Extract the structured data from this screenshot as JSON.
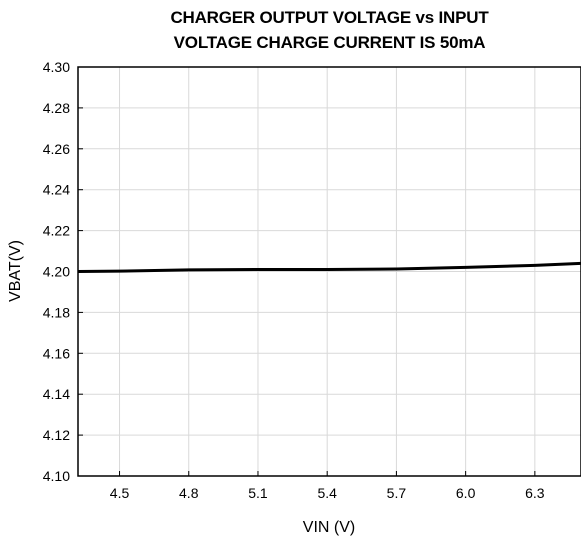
{
  "chart_data": {
    "type": "line",
    "title_lines": [
      "CHARGER OUTPUT VOLTAGE vs INPUT",
      "VOLTAGE CHARGE CURRENT IS 50mA"
    ],
    "xlabel": "VIN (V)",
    "ylabel": "VBAT(V)",
    "xlim": [
      4.32,
      6.5
    ],
    "ylim": [
      4.1,
      4.3
    ],
    "x_ticks": [
      4.5,
      4.8,
      5.1,
      5.4,
      5.7,
      6.0,
      6.3
    ],
    "x_tick_labels": [
      "4.5",
      "4.8",
      "5.1",
      "5.4",
      "5.7",
      "6.0",
      "6.3"
    ],
    "y_ticks": [
      4.1,
      4.12,
      4.14,
      4.16,
      4.18,
      4.2,
      4.22,
      4.24,
      4.26,
      4.28,
      4.3
    ],
    "y_tick_labels": [
      "4.10",
      "4.12",
      "4.14",
      "4.16",
      "4.18",
      "4.20",
      "4.22",
      "4.24",
      "4.26",
      "4.28",
      "4.30"
    ],
    "grid": true,
    "series": [
      {
        "x": [
          4.32,
          4.5,
          4.8,
          5.1,
          5.4,
          5.7,
          6.0,
          6.3,
          6.5
        ],
        "values": [
          4.2,
          4.2002,
          4.2008,
          4.201,
          4.201,
          4.2012,
          4.202,
          4.203,
          4.204
        ]
      }
    ],
    "line_color": "#000000",
    "grid_color": "#d9d9d9"
  }
}
